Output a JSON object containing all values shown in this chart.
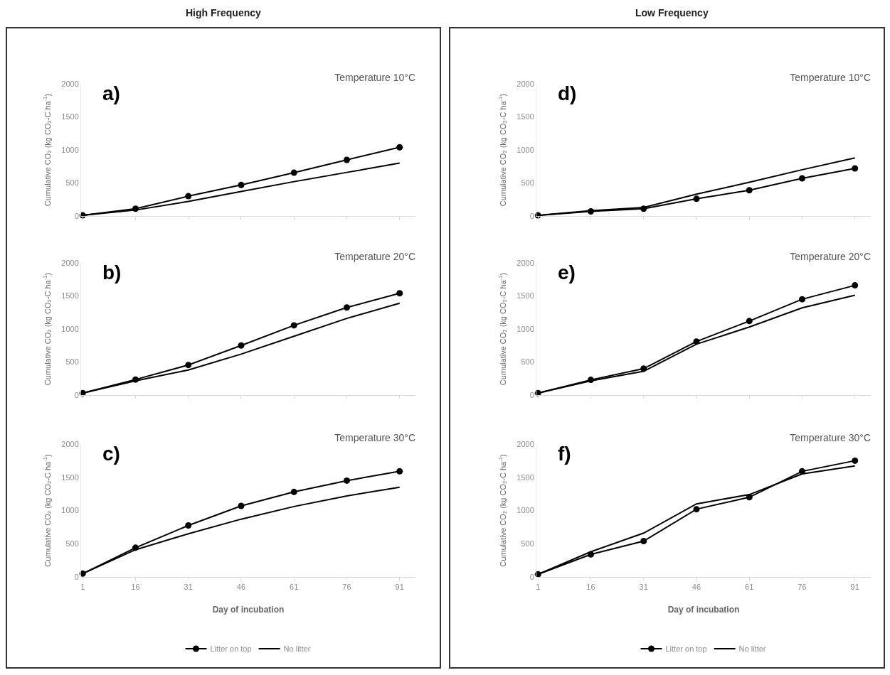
{
  "chart_data": [
    {
      "type": "line",
      "title": "Temperature 10°C",
      "subtitle": "High Frequency",
      "annotations": [
        "a)"
      ],
      "ylabel": "Cumulative CO₂ (kg CO₂-C ha$^{-1}$)",
      "categories": [
        "1",
        "16",
        "31",
        "46",
        "61",
        "76",
        "91"
      ],
      "ylim": [
        0,
        2000
      ],
      "yticks": [
        0,
        500,
        1000,
        1500,
        2000
      ],
      "tick_labels": "y",
      "grid": false,
      "legend": false,
      "series": [
        {
          "color": "#000000",
          "marker": "circle",
          "values": [
            10,
            110,
            300,
            470,
            655,
            850,
            1040
          ]
        },
        {
          "color": "#000000",
          "marker": "none",
          "values": [
            10,
            90,
            220,
            370,
            520,
            660,
            800
          ]
        }
      ]
    },
    {
      "type": "line",
      "title": "Temperature 10°C",
      "subtitle": "Low Frequency",
      "annotations": [
        "d)"
      ],
      "ylabel": "Cumulative CO₂ (kg CO₂-C ha$^{-1}$)",
      "categories": [
        "1",
        "16",
        "31",
        "46",
        "61",
        "76",
        "91"
      ],
      "ylim": [
        0,
        2000
      ],
      "yticks": [
        0,
        500,
        1000,
        1500,
        2000
      ],
      "tick_labels": "y",
      "grid": false,
      "legend": false,
      "series": [
        {
          "color": "#000000",
          "marker": "circle",
          "values": [
            10,
            70,
            110,
            260,
            390,
            570,
            720
          ]
        },
        {
          "color": "#000000",
          "marker": "none",
          "values": [
            10,
            80,
            130,
            330,
            510,
            700,
            880
          ]
        }
      ]
    },
    {
      "type": "line",
      "title": "Temperature 20°C",
      "annotations": [
        "b)"
      ],
      "ylabel": "Cumulative CO₂ (kg CO₂-C ha$^{-1}$)",
      "categories": [
        "1",
        "16",
        "31",
        "46",
        "61",
        "76",
        "91"
      ],
      "ylim": [
        0,
        2000
      ],
      "yticks": [
        0,
        500,
        1000,
        1500,
        2000
      ],
      "tick_labels": "y",
      "grid": false,
      "legend": false,
      "series": [
        {
          "color": "#000000",
          "marker": "circle",
          "values": [
            30,
            235,
            455,
            750,
            1055,
            1325,
            1540
          ]
        },
        {
          "color": "#000000",
          "marker": "none",
          "values": [
            30,
            215,
            380,
            620,
            890,
            1160,
            1390
          ]
        }
      ]
    },
    {
      "type": "line",
      "title": "Temperature 20°C",
      "annotations": [
        "e)"
      ],
      "ylabel": "Cumulative CO₂ (kg CO₂-C ha$^{-1}$)",
      "categories": [
        "1",
        "16",
        "31",
        "46",
        "61",
        "76",
        "91"
      ],
      "ylim": [
        0,
        2000
      ],
      "yticks": [
        0,
        500,
        1000,
        1500,
        2000
      ],
      "tick_labels": "y",
      "grid": false,
      "legend": false,
      "series": [
        {
          "color": "#000000",
          "marker": "circle",
          "values": [
            30,
            230,
            400,
            810,
            1120,
            1450,
            1660
          ]
        },
        {
          "color": "#000000",
          "marker": "none",
          "values": [
            30,
            215,
            360,
            770,
            1030,
            1320,
            1510
          ]
        }
      ]
    },
    {
      "type": "line",
      "title": "Temperature 30°C",
      "annotations": [
        "c)"
      ],
      "xlabel": "Day of incubation",
      "ylabel": "Cumulative CO₂ (kg CO₂-C ha$^{-1}$)",
      "categories": [
        "1",
        "16",
        "31",
        "46",
        "61",
        "76",
        "91"
      ],
      "ylim": [
        0,
        2000
      ],
      "yticks": [
        0,
        500,
        1000,
        1500,
        2000
      ],
      "grid": false,
      "legend": "bottom",
      "series": [
        {
          "name": "Litter on top",
          "color": "#000000",
          "marker": "circle",
          "values": [
            50,
            440,
            775,
            1070,
            1280,
            1450,
            1590
          ]
        },
        {
          "name": "No litter",
          "color": "#000000",
          "marker": "none",
          "values": [
            50,
            410,
            650,
            870,
            1060,
            1220,
            1350
          ]
        }
      ]
    },
    {
      "type": "line",
      "title": "Temperature 30°C",
      "annotations": [
        "f)"
      ],
      "xlabel": "Day of incubation",
      "ylabel": "Cumulative CO₂ (kg CO₂-C ha$^{-1}$)",
      "categories": [
        "1",
        "16",
        "31",
        "46",
        "61",
        "76",
        "91"
      ],
      "ylim": [
        0,
        2000
      ],
      "yticks": [
        0,
        500,
        1000,
        1500,
        2000
      ],
      "grid": false,
      "legend": "bottom",
      "series": [
        {
          "name": "Litter on top",
          "color": "#000000",
          "marker": "circle",
          "values": [
            40,
            340,
            540,
            1020,
            1200,
            1590,
            1750
          ]
        },
        {
          "name": "No litter",
          "color": "#000000",
          "marker": "none",
          "values": [
            40,
            380,
            660,
            1100,
            1240,
            1550,
            1670
          ]
        }
      ]
    }
  ]
}
